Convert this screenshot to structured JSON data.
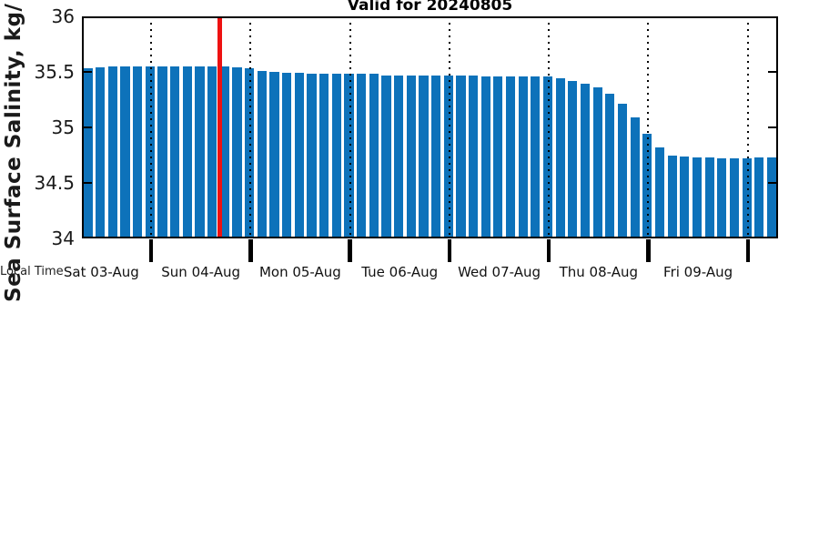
{
  "title": "Valid for 20240805",
  "y_axis": {
    "label": "Sea Surface Salinity, kg/",
    "tick_labels": [
      "36",
      "35.5",
      "35",
      "34.5",
      "34"
    ],
    "tick_values": [
      36,
      35.5,
      35,
      34.5,
      34
    ]
  },
  "x_axis": {
    "corner_label": "Local Time",
    "day_labels": [
      "Sat 03-Aug",
      "Sun 04-Aug",
      "Mon 05-Aug",
      "Tue 06-Aug",
      "Wed 07-Aug",
      "Thu 08-Aug",
      "Fri 09-Aug"
    ]
  },
  "colors": {
    "bar": "#0d72ba",
    "red_line": "#ee1111",
    "grid": "#000000",
    "text": "#111111"
  },
  "chart_data": {
    "type": "bar",
    "title": "Valid for 20240805",
    "ylabel": "Sea Surface Salinity, kg/",
    "xlabel": "Local Time",
    "ylim": [
      34,
      36
    ],
    "y_ticks": [
      36,
      35.5,
      35,
      34.5,
      34
    ],
    "x_interval": "3-hourly bars spanning 7 days",
    "day_labels": [
      "Sat 03-Aug",
      "Sun 04-Aug",
      "Mon 05-Aug",
      "Tue 06-Aug",
      "Wed 07-Aug",
      "Thu 08-Aug",
      "Fri 09-Aug"
    ],
    "grid": "vertical dotted lines at midnight day boundaries",
    "red_vertical_line_after_bar_index": 11,
    "values": [
      35.53,
      35.54,
      35.55,
      35.55,
      35.55,
      35.55,
      35.55,
      35.55,
      35.55,
      35.55,
      35.55,
      35.55,
      35.54,
      35.53,
      35.51,
      35.5,
      35.49,
      35.49,
      35.48,
      35.48,
      35.48,
      35.48,
      35.48,
      35.48,
      35.47,
      35.47,
      35.47,
      35.47,
      35.47,
      35.47,
      35.47,
      35.47,
      35.46,
      35.46,
      35.46,
      35.46,
      35.46,
      35.46,
      35.44,
      35.42,
      35.39,
      35.36,
      35.3,
      35.21,
      35.09,
      34.94,
      34.82,
      34.75,
      34.74,
      34.73,
      34.73,
      34.72,
      34.72,
      34.72,
      34.73,
      34.73
    ]
  }
}
